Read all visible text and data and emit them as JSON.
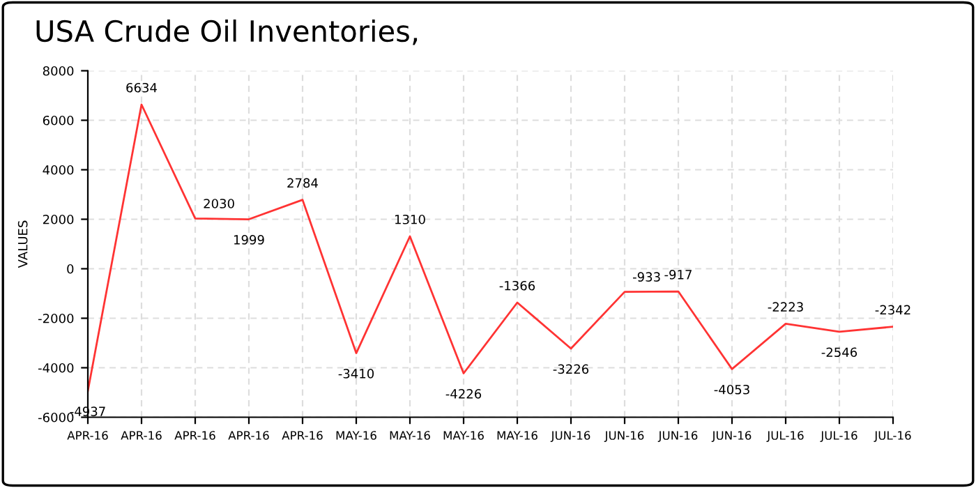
{
  "chart_data": {
    "type": "line",
    "title": "USA Crude Oil Inventories,",
    "ylabel": "VALUES",
    "categories": [
      "APR-16",
      "APR-16",
      "APR-16",
      "APR-16",
      "APR-16",
      "MAY-16",
      "MAY-16",
      "MAY-16",
      "MAY-16",
      "JUN-16",
      "JUN-16",
      "JUN-16",
      "JUN-16",
      "JUL-16",
      "JUL-16",
      "JUL-16"
    ],
    "series": [
      {
        "color": "#ff3333",
        "values": [
          -4937,
          6634,
          2030,
          1999,
          2784,
          -3410,
          1310,
          -4226,
          -1366,
          -3226,
          -933,
          -917,
          -4053,
          -2223,
          -2546,
          -2342
        ]
      }
    ],
    "ylim": [
      -6000,
      8000
    ],
    "yticks": [
      -6000,
      -4000,
      -2000,
      0,
      2000,
      4000,
      6000,
      8000
    ],
    "grid": true,
    "data_labels": true,
    "marker": "none",
    "line_style": "solid"
  }
}
